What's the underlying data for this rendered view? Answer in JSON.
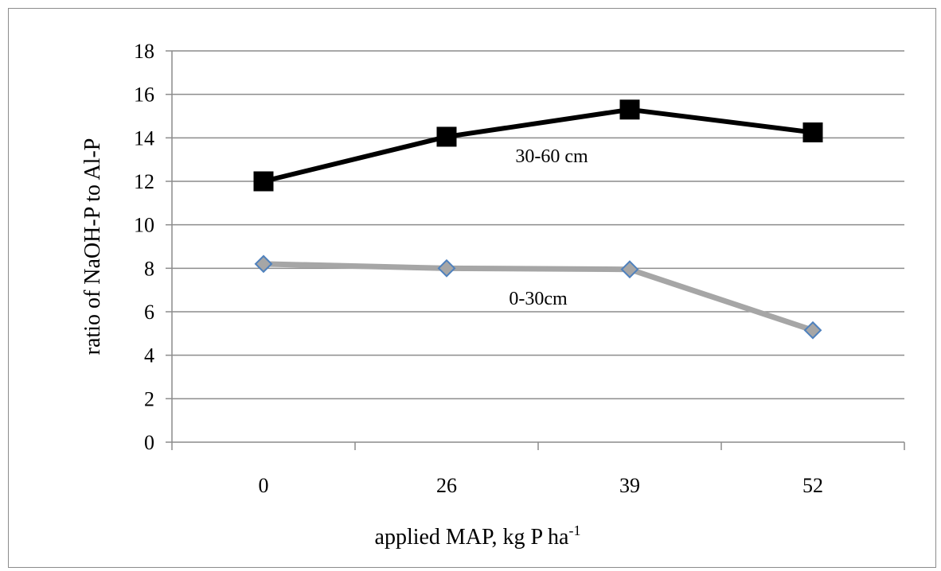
{
  "chart_data": {
    "type": "line",
    "categories": [
      "0",
      "26",
      "39",
      "52"
    ],
    "ylim": [
      0,
      18
    ],
    "yticks": [
      0,
      2,
      4,
      6,
      8,
      10,
      12,
      14,
      16,
      18
    ],
    "grid": true,
    "xlabel": {
      "text": "applied MAP, kg P ha",
      "superscript": "-1"
    },
    "ylabel": "ratio of NaOH-P to Al-P",
    "series": [
      {
        "name": "30-60 cm",
        "values": [
          12.0,
          14.05,
          15.3,
          14.25
        ],
        "line_color": "#000000",
        "marker": "square",
        "marker_fill": "#000000",
        "marker_stroke": "#000000"
      },
      {
        "name": "0-30cm",
        "values": [
          8.2,
          8.0,
          7.95,
          5.15
        ],
        "line_color": "#a6a6a6",
        "marker": "diamond",
        "marker_fill": "#a6a6a6",
        "marker_stroke": "#4f81bd"
      }
    ]
  }
}
